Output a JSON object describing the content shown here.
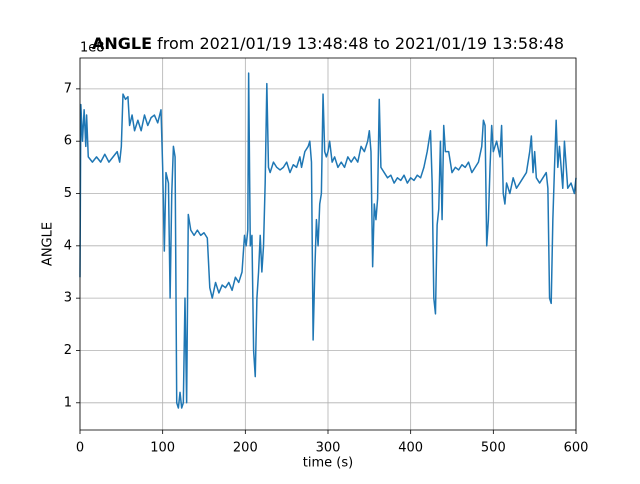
{
  "chart_data": {
    "type": "line",
    "title_bold": "ANGLE",
    "title": " from 2021/01/19 13:48:48 to 2021/01/19 13:58:48",
    "x_label": "time (s)",
    "y_label": "ANGLE",
    "y_offset_text": "1e8",
    "color": "#1f77b4",
    "grid": true,
    "xlim": [
      0,
      600
    ],
    "xticks": [
      0,
      100,
      200,
      300,
      400,
      500,
      600
    ],
    "ylim": [
      0.48,
      7.59
    ],
    "yticks": [
      1,
      2,
      3,
      4,
      5,
      6,
      7
    ],
    "x": [
      0,
      1,
      3,
      5,
      7,
      8,
      10,
      15,
      20,
      25,
      30,
      35,
      40,
      45,
      48,
      50,
      52,
      55,
      58,
      60,
      63,
      66,
      70,
      74,
      78,
      82,
      86,
      90,
      94,
      98,
      100,
      102,
      104,
      107,
      109,
      111,
      113,
      115,
      117,
      119,
      121,
      123,
      125,
      127,
      129,
      131,
      134,
      138,
      142,
      146,
      150,
      154,
      157,
      160,
      164,
      168,
      172,
      176,
      180,
      184,
      188,
      192,
      196,
      199,
      201,
      203,
      204,
      206,
      208,
      210,
      212,
      214,
      216,
      218,
      220,
      222,
      224,
      226,
      228,
      230,
      234,
      238,
      242,
      246,
      250,
      254,
      258,
      262,
      266,
      268,
      272,
      276,
      278,
      280,
      282,
      284,
      286,
      288,
      290,
      292,
      294,
      296,
      298,
      300,
      302,
      305,
      308,
      312,
      316,
      320,
      324,
      328,
      332,
      336,
      340,
      344,
      348,
      350,
      352,
      354,
      356,
      358,
      360,
      362,
      364,
      368,
      372,
      376,
      380,
      384,
      388,
      392,
      396,
      400,
      404,
      408,
      412,
      416,
      420,
      424,
      426,
      428,
      430,
      432,
      434,
      436,
      438,
      440,
      442,
      446,
      450,
      454,
      458,
      462,
      466,
      470,
      474,
      478,
      482,
      486,
      488,
      490,
      492,
      494,
      496,
      498,
      500,
      504,
      508,
      510,
      512,
      514,
      516,
      520,
      524,
      528,
      532,
      536,
      540,
      544,
      546,
      548,
      550,
      552,
      556,
      560,
      564,
      566,
      568,
      570,
      572,
      574,
      576,
      578,
      580,
      582,
      584,
      586,
      590,
      594,
      598,
      600
    ],
    "values": [
      3.4,
      6.7,
      6.0,
      6.6,
      5.9,
      6.5,
      5.7,
      5.6,
      5.7,
      5.6,
      5.75,
      5.6,
      5.7,
      5.8,
      5.6,
      5.9,
      6.9,
      6.8,
      6.85,
      6.3,
      6.5,
      6.2,
      6.4,
      6.2,
      6.5,
      6.3,
      6.45,
      6.5,
      6.35,
      6.6,
      5.5,
      3.9,
      5.4,
      5.2,
      3.0,
      5.0,
      5.9,
      5.7,
      1.0,
      0.9,
      1.2,
      0.9,
      1.0,
      3.0,
      1.0,
      4.6,
      4.3,
      4.2,
      4.3,
      4.2,
      4.25,
      4.15,
      3.2,
      3.0,
      3.3,
      3.1,
      3.25,
      3.2,
      3.3,
      3.15,
      3.4,
      3.3,
      3.5,
      4.2,
      4.0,
      4.3,
      7.3,
      4.0,
      4.2,
      2.0,
      1.5,
      3.0,
      3.5,
      4.2,
      3.5,
      4.0,
      5.2,
      7.1,
      5.5,
      5.4,
      5.6,
      5.5,
      5.45,
      5.5,
      5.6,
      5.4,
      5.55,
      5.5,
      5.7,
      5.5,
      5.8,
      5.9,
      6.0,
      5.6,
      2.2,
      3.5,
      4.5,
      4.0,
      4.8,
      5.0,
      6.9,
      5.8,
      5.7,
      5.8,
      6.0,
      5.6,
      5.7,
      5.5,
      5.6,
      5.5,
      5.7,
      5.6,
      5.7,
      5.6,
      5.9,
      5.8,
      6.0,
      6.2,
      5.8,
      3.6,
      4.8,
      4.5,
      4.9,
      6.8,
      5.5,
      5.4,
      5.3,
      5.35,
      5.2,
      5.3,
      5.25,
      5.35,
      5.2,
      5.3,
      5.25,
      5.35,
      5.3,
      5.5,
      5.8,
      6.2,
      5.2,
      3.0,
      2.7,
      4.4,
      4.7,
      6.0,
      4.5,
      6.3,
      5.8,
      5.8,
      5.4,
      5.5,
      5.45,
      5.55,
      5.5,
      5.6,
      5.4,
      5.5,
      5.6,
      5.9,
      6.4,
      6.3,
      4.0,
      4.5,
      5.5,
      6.3,
      5.8,
      6.0,
      5.7,
      6.3,
      5.0,
      4.8,
      5.2,
      5.0,
      5.3,
      5.1,
      5.2,
      5.3,
      5.4,
      5.8,
      6.1,
      5.4,
      5.8,
      5.3,
      5.2,
      5.3,
      5.4,
      5.1,
      3.0,
      2.9,
      4.5,
      5.5,
      6.4,
      5.5,
      5.9,
      5.5,
      5.1,
      6.0,
      5.1,
      5.2,
      5.0,
      5.3
    ]
  }
}
